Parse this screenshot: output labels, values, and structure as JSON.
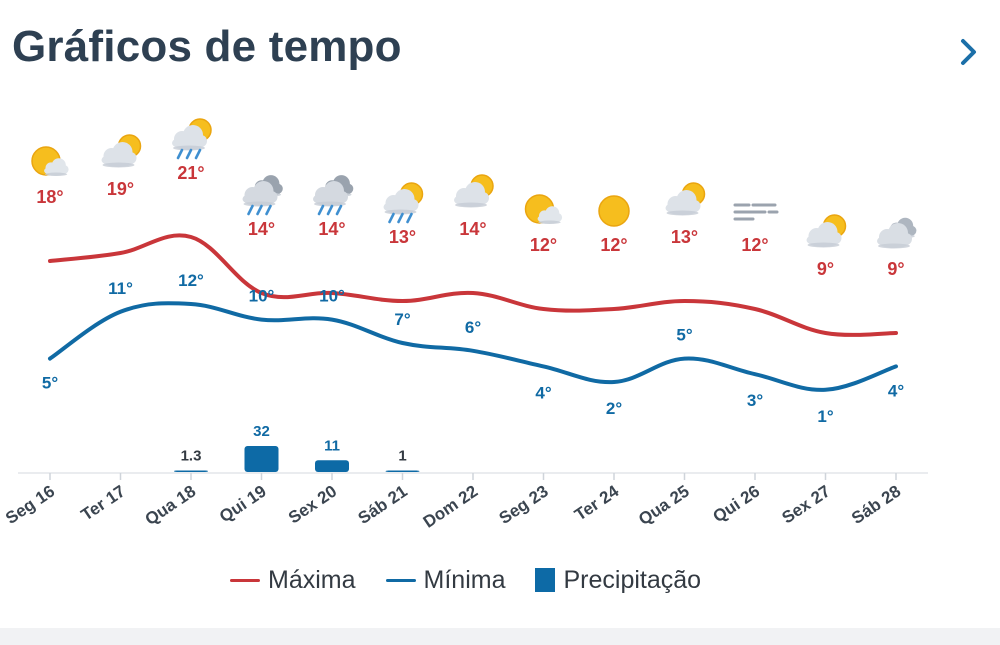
{
  "header": {
    "title": "Gráficos de tempo",
    "chevron_icon": "chevron-right-icon"
  },
  "colors": {
    "max": "#c9363a",
    "min": "#106aa4",
    "precip": "#0d6aa6",
    "title": "#2e4052"
  },
  "legend": {
    "max_label": "Máxima",
    "min_label": "Mínima",
    "precip_label": "Precipitação"
  },
  "days": [
    {
      "label": "Seg 16",
      "icon": "sun-behind-cloud-icon"
    },
    {
      "label": "Ter 17",
      "icon": "sun-behind-cloud-icon"
    },
    {
      "label": "Qua 18",
      "icon": "sun-cloud-rain-icon"
    },
    {
      "label": "Qui 19",
      "icon": "cloud-rain-icon"
    },
    {
      "label": "Sex 20",
      "icon": "cloud-rain-icon"
    },
    {
      "label": "Sáb 21",
      "icon": "sun-cloud-rain-icon"
    },
    {
      "label": "Dom 22",
      "icon": "sun-behind-cloud-icon"
    },
    {
      "label": "Seg 23",
      "icon": "sun-behind-cloud-icon"
    },
    {
      "label": "Ter 24",
      "icon": "sun-icon"
    },
    {
      "label": "Qua 25",
      "icon": "sun-behind-cloud-icon"
    },
    {
      "label": "Qui 26",
      "icon": "fog-icon"
    },
    {
      "label": "Sex 27",
      "icon": "sun-behind-cloud-icon"
    },
    {
      "label": "Sáb 28",
      "icon": "cloud-icon"
    }
  ],
  "chart_data": {
    "type": "line",
    "categories": [
      "Seg 16",
      "Ter 17",
      "Qua 18",
      "Qui 19",
      "Sex 20",
      "Sáb 21",
      "Dom 22",
      "Seg 23",
      "Ter 24",
      "Qua 25",
      "Qui 26",
      "Sex 27",
      "Sáb 28"
    ],
    "series": [
      {
        "name": "Máxima",
        "unit": "°",
        "values": [
          18,
          19,
          21,
          14,
          14,
          13,
          14,
          12,
          12,
          13,
          12,
          9,
          9
        ]
      },
      {
        "name": "Mínima",
        "unit": "°",
        "values": [
          5,
          11,
          12,
          10,
          10,
          7,
          6,
          4,
          2,
          5,
          3,
          1,
          4
        ]
      },
      {
        "name": "Precipitação",
        "type": "bar",
        "values": [
          null,
          null,
          1.3,
          32,
          11,
          1,
          null,
          null,
          null,
          null,
          null,
          null,
          null
        ]
      }
    ],
    "legend_position": "bottom",
    "grid": false
  }
}
